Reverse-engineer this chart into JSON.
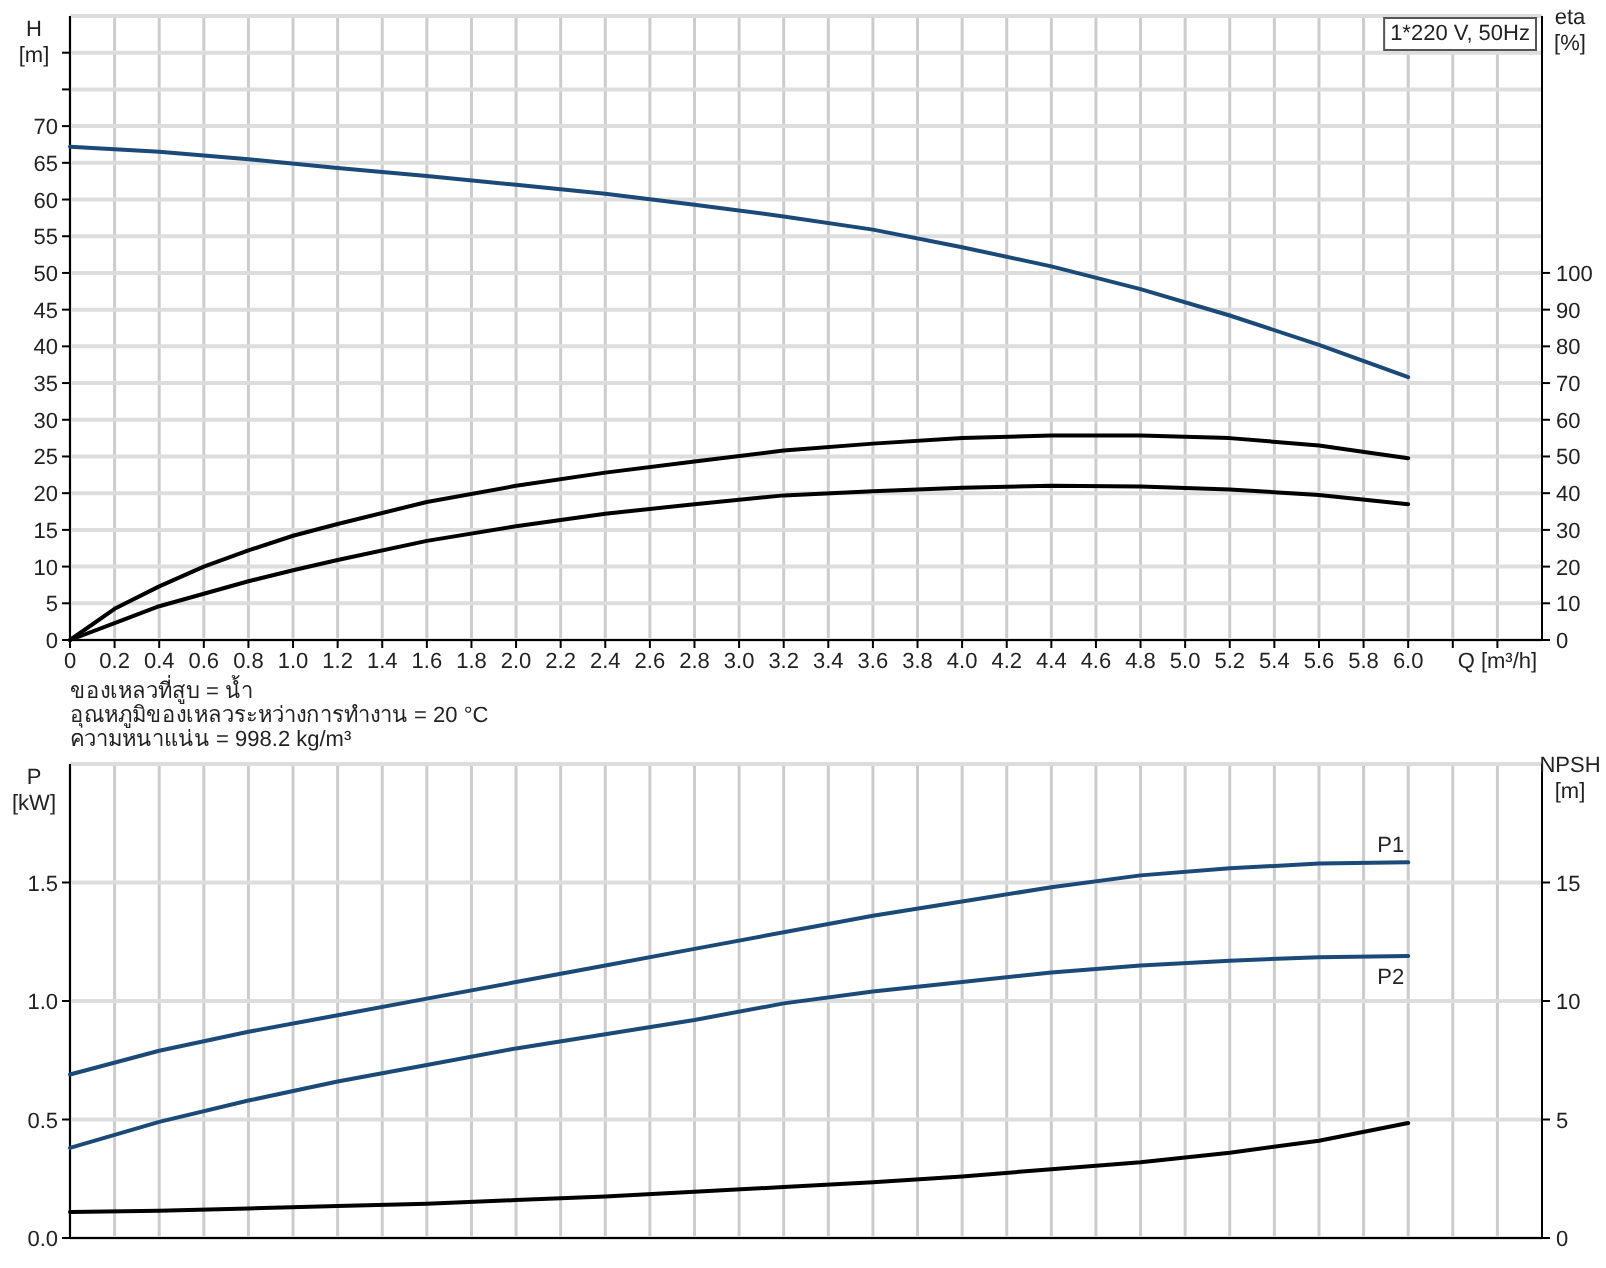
{
  "chart_data": [
    {
      "type": "line",
      "title": "1*220 V, 50Hz",
      "xlabel": "Q [m³/h]",
      "ylabel": "H [m]",
      "y2label": "eta [%]",
      "xlim": [
        0,
        6.6
      ],
      "ylim": [
        0,
        85
      ],
      "y2lim": [
        0,
        170
      ],
      "grid": true,
      "xticks": [
        0,
        0.2,
        0.4,
        0.6,
        0.8,
        {
          "value": 1,
          "label": "1.0"
        },
        1.2,
        1.4,
        1.6,
        1.8,
        {
          "value": 2,
          "label": "2.0"
        },
        2.2,
        2.4,
        2.6,
        2.8,
        {
          "value": 3,
          "label": "3.0"
        },
        3.2,
        3.4,
        3.6,
        3.8,
        {
          "value": 4,
          "label": "4.0"
        },
        4.2,
        4.4,
        4.6,
        4.8,
        {
          "value": 5,
          "label": "5.0"
        },
        5.2,
        5.4,
        5.6,
        5.8,
        {
          "value": 6,
          "label": "6.0"
        },
        {
          "value": 6.2,
          "label": null
        },
        {
          "value": 6.4,
          "label": null
        }
      ],
      "yticks": [
        0,
        5,
        10,
        15,
        20,
        25,
        30,
        35,
        40,
        45,
        50,
        55,
        60,
        65,
        70,
        {
          "value": 75,
          "label": null
        },
        {
          "value": 80,
          "label": null
        }
      ],
      "y2ticks": [
        0,
        10,
        20,
        30,
        40,
        50,
        60,
        70,
        80,
        90,
        100
      ],
      "annotations": [
        "ของเหลวที่สูบ = น้ำ",
        "อุณหภูมิของเหลวระหว่างการทำงาน = 20 °C",
        "ความหนาแน่น = 998.2 kg/m³"
      ],
      "series": [
        {
          "color": "#1b4a78",
          "x": [
            0,
            0.4,
            0.8,
            1.2,
            1.6,
            2.0,
            2.4,
            2.8,
            3.2,
            3.6,
            4.0,
            4.4,
            4.8,
            5.2,
            5.6,
            6.0
          ],
          "values": [
            67.2,
            66.5,
            65.5,
            64.3,
            63.2,
            62,
            60.8,
            59.3,
            57.7,
            55.9,
            53.5,
            50.9,
            47.8,
            44.2,
            40.2,
            35.8
          ]
        },
        {
          "color": "#000000",
          "axis": "y2",
          "x": [
            0,
            0.2,
            0.4,
            0.6,
            0.8,
            1.0,
            1.2,
            1.6,
            2.0,
            2.4,
            2.8,
            3.2,
            3.6,
            4.0,
            4.4,
            4.8,
            5.2,
            5.6,
            6.0
          ],
          "values": [
            0,
            8.5,
            14.6,
            20,
            24.4,
            28.4,
            31.6,
            37.6,
            42,
            45.6,
            48.6,
            51.6,
            53.5,
            55,
            55.7,
            55.7,
            55,
            53,
            49.5
          ]
        },
        {
          "color": "#000000",
          "axis": "y2",
          "x": [
            0,
            0.2,
            0.4,
            0.6,
            0.8,
            1.0,
            1.2,
            1.6,
            2.0,
            2.4,
            2.8,
            3.2,
            3.6,
            4.0,
            4.4,
            4.8,
            5.2,
            5.6,
            6.0
          ],
          "values": [
            0,
            4.6,
            9.2,
            12.6,
            16,
            19,
            21.8,
            27,
            31,
            34.4,
            37,
            39.4,
            40.5,
            41.5,
            42,
            41.8,
            41,
            39.5,
            37
          ]
        }
      ]
    },
    {
      "type": "line",
      "ylabel": "P [kW]",
      "y2label": "NPSH [m]",
      "xlim": [
        0,
        6.6
      ],
      "ylim": [
        0,
        2
      ],
      "y2lim": [
        0,
        20
      ],
      "grid": true,
      "tick_labels": "y",
      "xticks": [
        0,
        0.2,
        0.4,
        0.6,
        0.8,
        1,
        1.2,
        1.4,
        1.6,
        1.8,
        2,
        2.2,
        2.4,
        2.6,
        2.8,
        3,
        3.2,
        3.4,
        3.6,
        3.8,
        4,
        4.2,
        4.4,
        4.6,
        4.8,
        5,
        5.2,
        5.4,
        5.6,
        5.8,
        6,
        6.2,
        6.4
      ],
      "yticks": [
        {
          "value": 0,
          "label": "0.0"
        },
        {
          "value": 0.5,
          "label": "0.5"
        },
        {
          "value": 1,
          "label": "1.0"
        },
        1.5
      ],
      "y2ticks": [
        0,
        5,
        10,
        15
      ],
      "series": [
        {
          "name": "P1",
          "color": "#1b4a78",
          "x": [
            0,
            0.4,
            0.8,
            1.2,
            1.6,
            2.0,
            2.4,
            2.8,
            3.2,
            3.6,
            4.0,
            4.4,
            4.8,
            5.2,
            5.6,
            6.0
          ],
          "values": [
            0.69,
            0.79,
            0.87,
            0.94,
            1.01,
            1.08,
            1.15,
            1.22,
            1.29,
            1.36,
            1.42,
            1.48,
            1.53,
            1.56,
            1.58,
            1.585
          ]
        },
        {
          "name": "P2",
          "color": "#1b4a78",
          "x": [
            0,
            0.4,
            0.8,
            1.2,
            1.6,
            2.0,
            2.4,
            2.8,
            3.2,
            3.6,
            4.0,
            4.4,
            4.8,
            5.2,
            5.6,
            6.0
          ],
          "values": [
            0.38,
            0.49,
            0.58,
            0.66,
            0.73,
            0.8,
            0.86,
            0.92,
            0.99,
            1.04,
            1.08,
            1.12,
            1.15,
            1.17,
            1.185,
            1.19
          ]
        },
        {
          "color": "#000000",
          "axis": "y2",
          "x": [
            0,
            0.4,
            0.8,
            1.2,
            1.6,
            2.0,
            2.4,
            2.8,
            3.2,
            3.6,
            4.0,
            4.4,
            4.8,
            5.2,
            5.6,
            6.0
          ],
          "values": [
            1.1,
            1.15,
            1.25,
            1.35,
            1.45,
            1.6,
            1.75,
            1.95,
            2.15,
            2.35,
            2.6,
            2.9,
            3.2,
            3.6,
            4.1,
            4.85
          ]
        }
      ]
    }
  ]
}
